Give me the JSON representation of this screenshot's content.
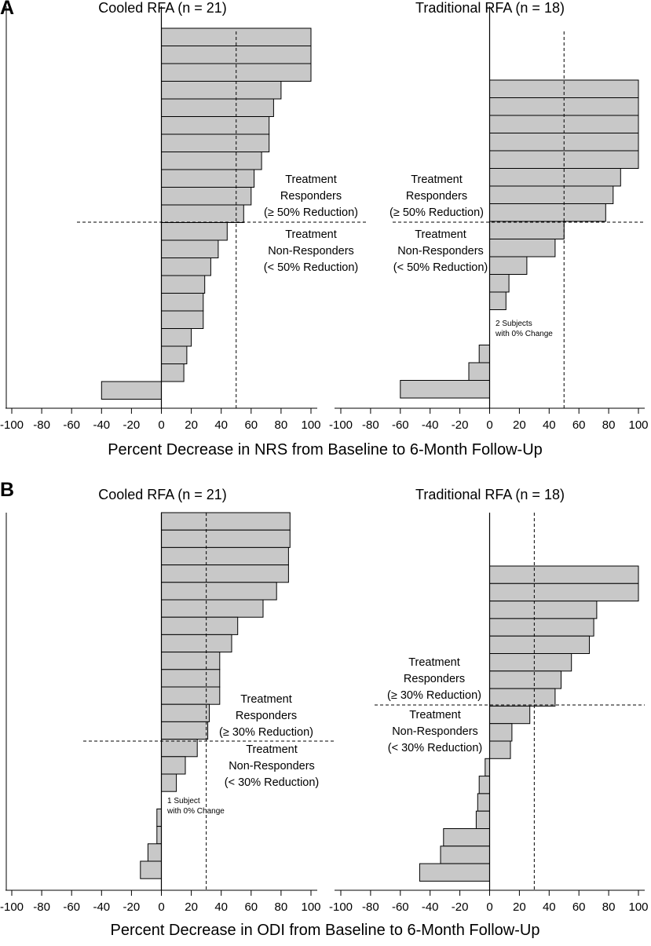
{
  "figure": {
    "panel_a_letter": "A",
    "panel_b_letter": "B",
    "panel_a_xlabel": "Percent Decrease in NRS from Baseline to 6-Month Follow-Up",
    "panel_b_xlabel": "Percent Decrease in ODI from Baseline to 6-Month Follow-Up"
  },
  "colors": {
    "bar_fill": "#c8c8c8",
    "bar_stroke": "#000000",
    "line": "#000000"
  },
  "chart_data": [
    {
      "panel": "A",
      "type": "bar",
      "orientation": "horizontal",
      "title": "Cooled RFA (n = 21)",
      "xlim": [
        -100,
        100
      ],
      "xticks": [
        -100,
        -80,
        -60,
        -40,
        -20,
        0,
        20,
        40,
        60,
        80,
        100
      ],
      "values": [
        100,
        100,
        100,
        80,
        75,
        72,
        72,
        67,
        62,
        60,
        55,
        44,
        38,
        33,
        29,
        28,
        28,
        20,
        17,
        15,
        -40
      ],
      "threshold": 50,
      "grid": false,
      "annotations": {
        "responders": [
          "Treatment",
          "Responders",
          "(≥ 50% Reduction)"
        ],
        "non_responders": [
          "Treatment",
          "Non-Responders",
          "(< 50% Reduction)"
        ],
        "note": []
      }
    },
    {
      "panel": "A",
      "type": "bar",
      "orientation": "horizontal",
      "title": "Traditional RFA (n = 18)",
      "xlim": [
        -100,
        100
      ],
      "xticks": [
        -100,
        -80,
        -60,
        -40,
        -20,
        0,
        20,
        40,
        60,
        80,
        100
      ],
      "values": [
        100,
        100,
        100,
        100,
        100,
        88,
        83,
        78,
        50,
        44,
        25,
        13,
        11,
        0,
        0,
        -7,
        -14,
        -60
      ],
      "threshold": 50,
      "grid": false,
      "annotations": {
        "responders": [
          "Treatment",
          "Responders",
          "(≥ 50% Reduction)"
        ],
        "non_responders": [
          "Treatment",
          "Non-Responders",
          "(< 50% Reduction)"
        ],
        "note": [
          "2 Subjects",
          "with 0% Change"
        ]
      }
    },
    {
      "panel": "B",
      "type": "bar",
      "orientation": "horizontal",
      "title": "Cooled RFA (n = 21)",
      "xlim": [
        -100,
        100
      ],
      "xticks": [
        -100,
        -80,
        -60,
        -40,
        -20,
        0,
        20,
        40,
        60,
        80,
        100
      ],
      "values": [
        86,
        86,
        85,
        85,
        77,
        68,
        51,
        47,
        39,
        39,
        39,
        32,
        31,
        24,
        16,
        10,
        0,
        -3,
        -3,
        -9,
        -14
      ],
      "threshold": 30,
      "grid": false,
      "annotations": {
        "responders": [
          "Treatment",
          "Responders",
          "(≥ 30% Reduction)"
        ],
        "non_responders": [
          "Treatment",
          "Non-Responders",
          "(< 30% Reduction)"
        ],
        "note": [
          "1 Subject",
          "with 0% Change"
        ]
      }
    },
    {
      "panel": "B",
      "type": "bar",
      "orientation": "horizontal",
      "title": "Traditional RFA (n = 18)",
      "xlim": [
        -100,
        100
      ],
      "xticks": [
        -100,
        -80,
        -60,
        -40,
        -20,
        0,
        20,
        40,
        60,
        80,
        100
      ],
      "values": [
        100,
        100,
        72,
        70,
        67,
        55,
        48,
        44,
        27,
        15,
        14,
        -3,
        -7,
        -8,
        -9,
        -31,
        -33,
        -47
      ],
      "threshold": 30,
      "grid": false,
      "annotations": {
        "responders": [
          "Treatment",
          "Responders",
          "(≥ 30% Reduction)"
        ],
        "non_responders": [
          "Treatment",
          "Non-Responders",
          "(< 30% Reduction)"
        ],
        "note": []
      }
    }
  ]
}
